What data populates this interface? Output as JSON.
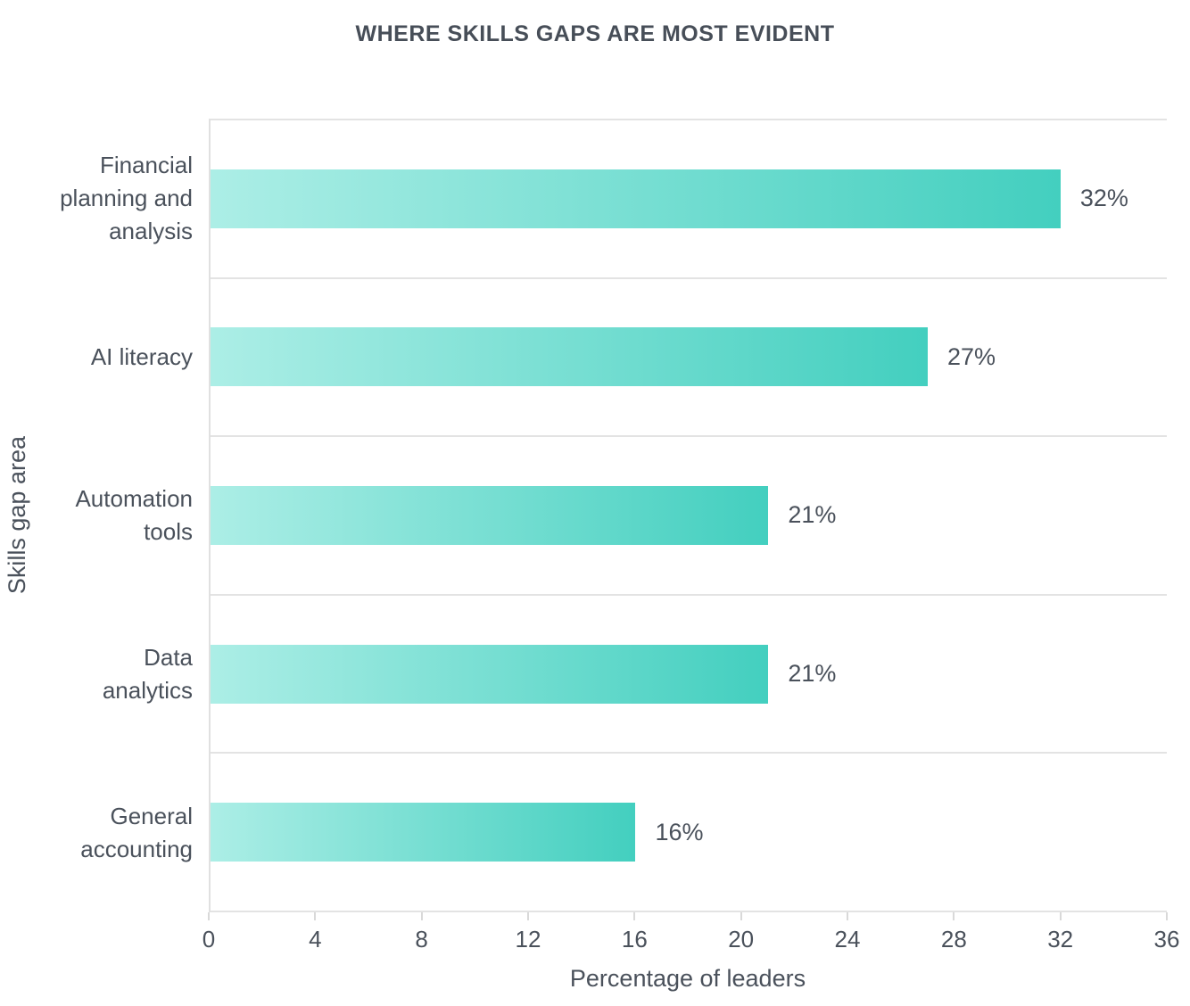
{
  "chart_data": {
    "type": "bar",
    "orientation": "horizontal",
    "title": "WHERE SKILLS GAPS ARE MOST EVIDENT",
    "categories": [
      "Financial planning and analysis",
      "AI literacy",
      "Automation tools",
      "Data analytics",
      "General accounting"
    ],
    "category_lines": [
      [
        "Financial",
        "planning and",
        "analysis"
      ],
      [
        "AI literacy"
      ],
      [
        "Automation",
        "tools"
      ],
      [
        "Data",
        "analytics"
      ],
      [
        "General",
        "accounting"
      ]
    ],
    "values": [
      32,
      27,
      21,
      21,
      16
    ],
    "value_labels": [
      "32%",
      "27%",
      "21%",
      "21%",
      "16%"
    ],
    "xlabel": "Percentage of leaders",
    "ylabel": "Skills gap area",
    "xlim": [
      0,
      36
    ],
    "xticks": [
      0,
      4,
      8,
      12,
      16,
      20,
      24,
      28,
      32,
      36
    ],
    "legend": "none",
    "grid": "horizontal band separators, left axis line, top and bottom frame lines",
    "colors": {
      "bar_gradient_start": "#aceee6",
      "bar_gradient_end": "#43cfbf",
      "text": "#4a515b",
      "title_text": "#474e58",
      "grid_line": "#e3e3e3",
      "tick_mark": "#d9d9d9",
      "background": "#ffffff"
    }
  }
}
